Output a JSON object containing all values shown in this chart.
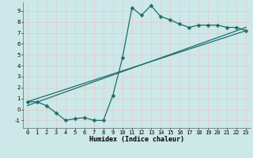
{
  "background_color": "#cce8e8",
  "line_color": "#1a6e6a",
  "grid_color": "#b8d8d8",
  "xlabel": "Humidex (Indice chaleur)",
  "xlim": [
    -0.5,
    23.5
  ],
  "ylim": [
    -1.7,
    9.8
  ],
  "xticks": [
    0,
    1,
    2,
    3,
    4,
    5,
    6,
    7,
    8,
    9,
    10,
    11,
    12,
    13,
    14,
    15,
    16,
    17,
    18,
    19,
    20,
    21,
    22,
    23
  ],
  "yticks": [
    -1,
    0,
    1,
    2,
    3,
    4,
    5,
    6,
    7,
    8,
    9
  ],
  "line1_x": [
    0,
    1,
    2,
    3,
    4,
    5,
    6,
    7,
    8,
    9,
    10,
    11,
    12,
    13,
    14,
    15,
    16,
    17,
    18,
    19,
    20,
    21,
    22,
    23
  ],
  "line1_y": [
    0.7,
    0.7,
    0.35,
    -0.3,
    -1.0,
    -0.85,
    -0.75,
    -1.0,
    -1.0,
    1.3,
    4.7,
    9.3,
    8.6,
    9.5,
    8.5,
    8.2,
    7.8,
    7.5,
    7.7,
    7.7,
    7.7,
    7.5,
    7.5,
    7.2
  ],
  "line2_x": [
    0,
    23
  ],
  "line2_y": [
    0.7,
    7.2
  ],
  "line3_x": [
    0,
    23
  ],
  "line3_y": [
    0.35,
    7.5
  ],
  "marker_size": 2.5,
  "linewidth": 0.9,
  "title_fontsize": 7,
  "xlabel_fontsize": 6,
  "tick_fontsize": 5
}
